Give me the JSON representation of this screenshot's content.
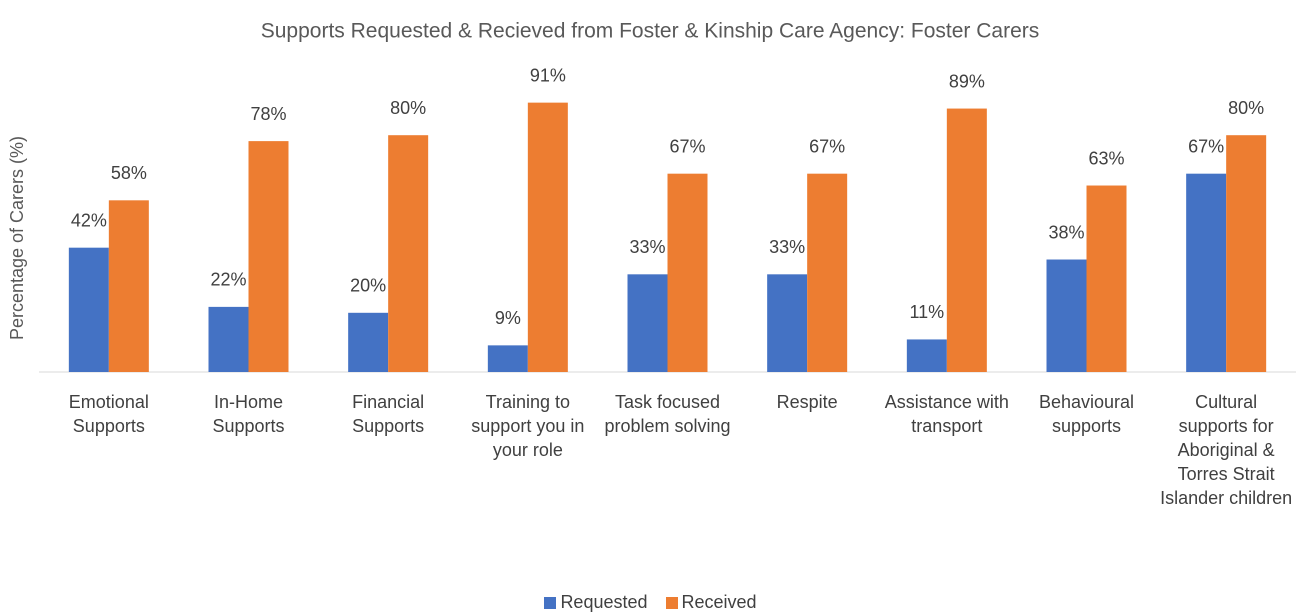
{
  "chart_data": {
    "type": "bar",
    "title": "Supports Requested & Recieved from Foster & Kinship Care Agency: Foster Carers",
    "y_label": "Percentage of Carers (%)",
    "categories": [
      "Emotional Supports",
      "In-Home Supports",
      "Financial Supports",
      "Training to support you in your role",
      "Task focused problem solving",
      "Respite",
      "Assistance with transport",
      "Behavioural supports",
      "Cultural supports for Aboriginal & Torres Strait Islander children"
    ],
    "series": [
      {
        "name": "Requested",
        "color": "#4472c4",
        "values": [
          42,
          22,
          20,
          9,
          33,
          33,
          11,
          38,
          67
        ],
        "value_labels": [
          "42%",
          "22%",
          "20%",
          "9%",
          "33%",
          "33%",
          "11%",
          "38%",
          "67%"
        ]
      },
      {
        "name": "Received",
        "color": "#ed7d31",
        "values": [
          58,
          78,
          80,
          91,
          67,
          67,
          89,
          63,
          80
        ],
        "value_labels": [
          "58%",
          "78%",
          "80%",
          "91%",
          "67%",
          "67%",
          "89%",
          "63%",
          "80%"
        ]
      }
    ],
    "ylim": [
      0,
      100
    ],
    "legend": "bottom"
  }
}
